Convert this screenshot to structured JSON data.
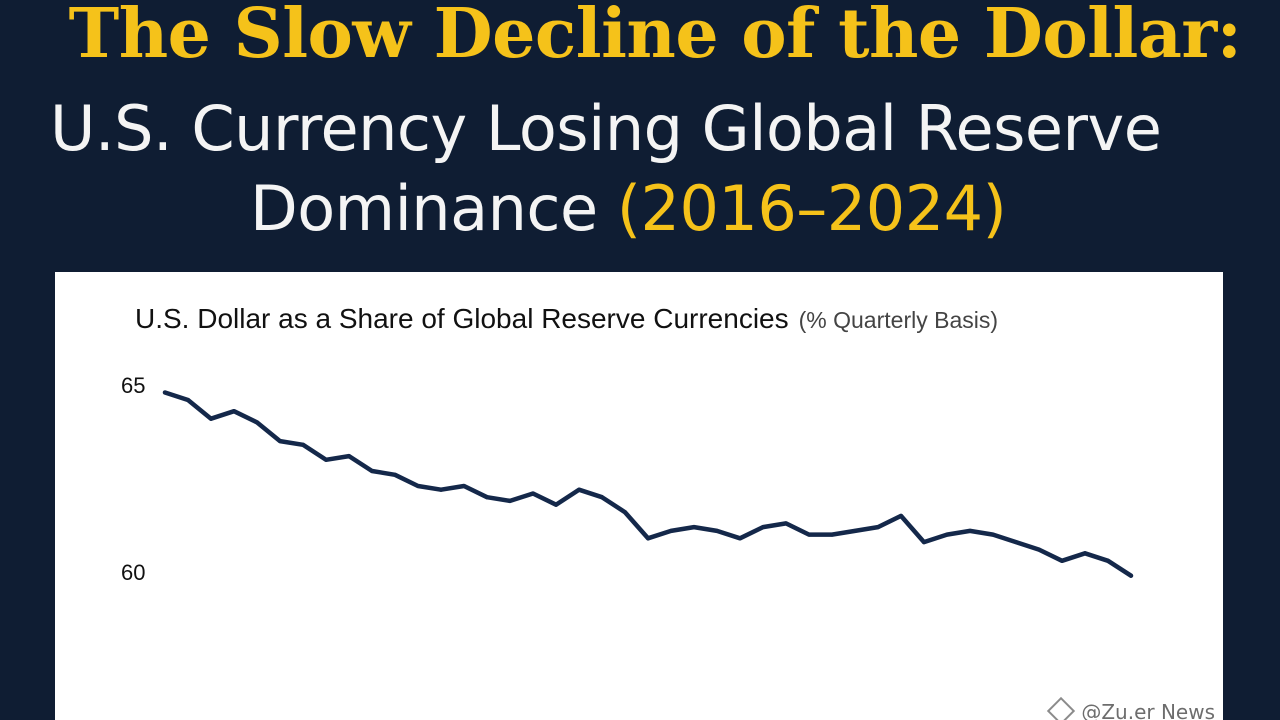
{
  "header": {
    "title": "The Slow Decline of the Dollar:",
    "subtitle_line1": "U.S. Currency Losing Global Reserve",
    "subtitle_line2_main": "Dominance ",
    "subtitle_line2_years": "(2016–2024)"
  },
  "colors": {
    "background": "#0f1d33",
    "accent": "#f5c21a",
    "line": "#14284a"
  },
  "chart_data": {
    "type": "line",
    "title": "U.S. Dollar as a Share of Global Reserve Currencies",
    "title_unit": "(% Quarterly Basis)",
    "ylim": [
      55,
      65.5
    ],
    "yticks": [
      60,
      65
    ],
    "ytick_labels": [
      "60",
      "65"
    ],
    "grid": false,
    "series": [
      {
        "values": [
          64.8,
          64.6,
          64.1,
          64.3,
          64.0,
          63.5,
          63.4,
          63.0,
          63.1,
          62.7,
          62.6,
          62.3,
          62.2,
          62.3,
          62.0,
          61.9,
          62.1,
          61.8,
          62.2,
          62.0,
          61.6,
          60.9,
          61.1,
          61.2,
          61.1,
          60.9,
          61.2,
          61.3,
          61.0,
          61.0,
          61.1,
          61.2,
          61.5,
          60.8,
          61.0,
          61.1,
          61.0,
          60.8,
          60.6,
          60.3,
          60.5,
          60.3,
          59.9
        ]
      }
    ]
  },
  "watermark": "@Zu.er News"
}
